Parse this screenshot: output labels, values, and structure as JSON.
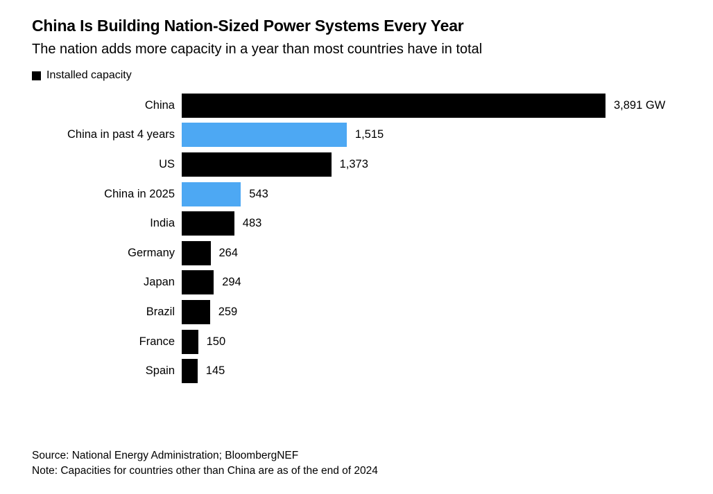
{
  "header": {
    "title": "China Is Building Nation-Sized Power Systems Every Year",
    "subtitle": "The nation adds more capacity in a year than most countries have in total"
  },
  "legend": {
    "label": "Installed capacity",
    "swatch_color": "#000000"
  },
  "colors": {
    "black": "#000000",
    "blue": "#4DA8F3"
  },
  "chart_data": {
    "type": "bar",
    "orientation": "horizontal",
    "title": "China Is Building Nation-Sized Power Systems Every Year",
    "subtitle": "The nation adds more capacity in a year than most countries have in total",
    "legend_entries": [
      "Installed capacity"
    ],
    "unit": "GW",
    "xlim": [
      0,
      3891
    ],
    "grid": false,
    "categories": [
      "China",
      "China in past 4 years",
      "US",
      "China in 2025",
      "India",
      "Germany",
      "Japan",
      "Brazil",
      "France",
      "Spain"
    ],
    "values": [
      3891,
      1515,
      1373,
      543,
      483,
      264,
      294,
      259,
      150,
      145
    ],
    "value_labels": [
      "3,891 GW",
      "1,515",
      "1,373",
      "543",
      "483",
      "264",
      "294",
      "259",
      "150",
      "145"
    ],
    "bar_colors": [
      "black",
      "blue",
      "black",
      "blue",
      "black",
      "black",
      "black",
      "black",
      "black",
      "black"
    ]
  },
  "footer": {
    "source": "Source: National Energy Administration; BloombergNEF",
    "note": "Note: Capacities for countries other than China are as of the end of 2024"
  }
}
